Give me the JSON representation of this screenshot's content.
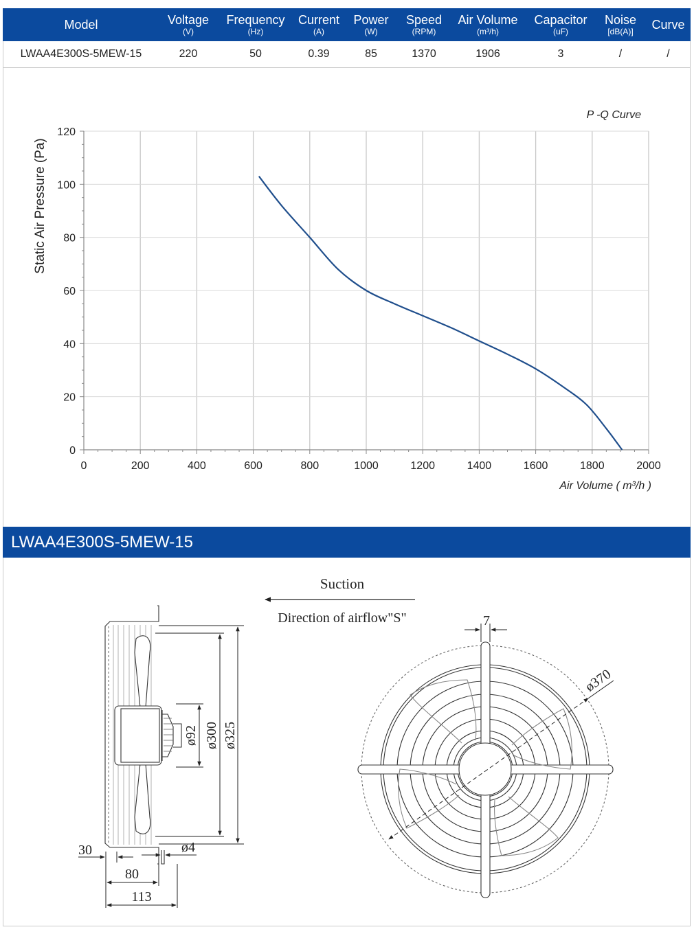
{
  "spec_table": {
    "columns": [
      {
        "label": "Model",
        "unit": ""
      },
      {
        "label": "Voltage",
        "unit": "(V)"
      },
      {
        "label": "Frequency",
        "unit": "(Hz)"
      },
      {
        "label": "Current",
        "unit": "(A)"
      },
      {
        "label": "Power",
        "unit": "(W)"
      },
      {
        "label": "Speed",
        "unit": "(RPM)"
      },
      {
        "label": "Air Volume",
        "unit": "(m³/h)"
      },
      {
        "label": "Capacitor",
        "unit": "(uF)"
      },
      {
        "label": "Noise",
        "unit": "[dB(A)]"
      },
      {
        "label": "Curve",
        "unit": ""
      }
    ],
    "row": [
      "LWAA4E300S-5MEW-15",
      "220",
      "50",
      "0.39",
      "85",
      "1370",
      "1906",
      "3",
      "/",
      "/"
    ]
  },
  "chart_data": {
    "type": "line",
    "title": "P -Q Curve",
    "xlabel": "Air Volume ( m³/h )",
    "ylabel": "Static Air Pressure  (Pa)",
    "xlim": [
      0,
      2000
    ],
    "ylim": [
      0,
      120
    ],
    "xticks": [
      "0",
      "200",
      "400",
      "600",
      "800",
      "1000",
      "1200",
      "1400",
      "1600",
      "1800",
      "2000"
    ],
    "yticks": [
      "0",
      "20",
      "40",
      "60",
      "80",
      "100",
      "120"
    ],
    "grid": true,
    "line_color": "#1f4e8c",
    "series": [
      {
        "x": [
          620,
          700,
          800,
          900,
          1000,
          1100,
          1200,
          1300,
          1400,
          1500,
          1600,
          1700,
          1780,
          1850,
          1906
        ],
        "y": [
          103,
          92,
          80,
          68,
          60,
          55,
          50.5,
          46,
          41,
          36,
          30.5,
          23.5,
          17,
          8,
          0
        ]
      }
    ]
  },
  "drawing": {
    "section_title": "LWAA4E300S-5MEW-15",
    "suction_label": "Suction",
    "airflow_label": "Direction of airflow\"S\"",
    "dims": {
      "d92": "ø92",
      "d300": "ø300",
      "d325": "ø325",
      "d4": "ø4",
      "d370": "ø370",
      "w7": "7",
      "w30": "30",
      "w80": "80",
      "w113": "113"
    }
  }
}
